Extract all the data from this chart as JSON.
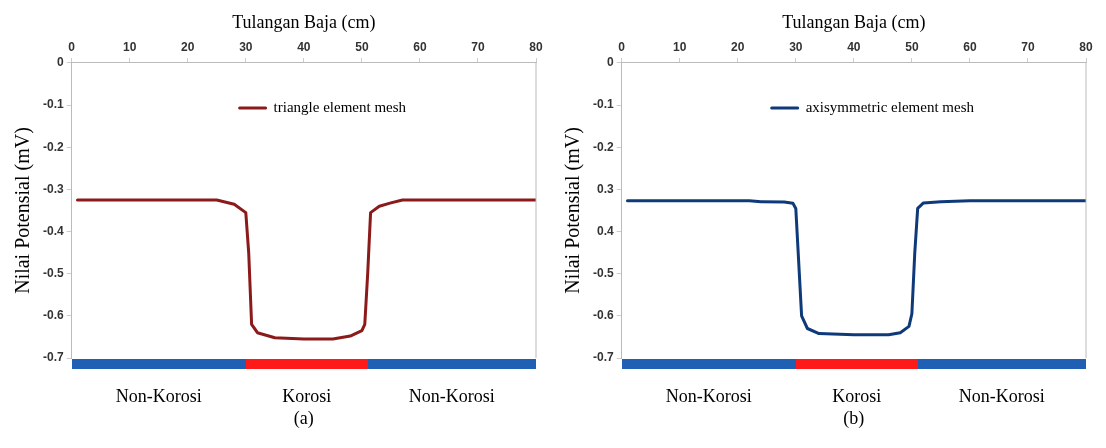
{
  "chart_data": [
    {
      "type": "line",
      "xlabel": "Tulangan Baja (cm)",
      "ylabel": "Nilai Potensial (mV)",
      "xlim": [
        0,
        80
      ],
      "xticks": [
        0,
        10,
        20,
        30,
        40,
        50,
        60,
        70,
        80
      ],
      "ylim": [
        -0.7,
        0
      ],
      "yticks": [
        0,
        -0.1,
        -0.2,
        -0.3,
        -0.4,
        -0.5,
        -0.6,
        -0.7
      ],
      "grid": false,
      "legend": "top",
      "marker": "none",
      "line_style": "solid",
      "series": [
        {
          "name": "triangle element mesh",
          "color": "#8b1a1a",
          "x": [
            1,
            10,
            20,
            25,
            28,
            30,
            30.5,
            31,
            32,
            35,
            40,
            45,
            48,
            50,
            50.5,
            51,
            51.5,
            53,
            55,
            57,
            65,
            80
          ],
          "values": [
            -0.325,
            -0.325,
            -0.325,
            -0.325,
            -0.335,
            -0.355,
            -0.45,
            -0.62,
            -0.64,
            -0.652,
            -0.655,
            -0.655,
            -0.648,
            -0.635,
            -0.62,
            -0.5,
            -0.355,
            -0.34,
            -0.332,
            -0.325,
            -0.325,
            -0.325
          ]
        }
      ],
      "annotations": [
        "Non-Korosi",
        "Korosi",
        "Non-Korosi",
        "(a)"
      ]
    },
    {
      "type": "line",
      "xlabel": "Tulangan Baja (cm)",
      "ylabel": "Nilai Potensial (mV)",
      "xlim": [
        0,
        80
      ],
      "xticks": [
        0,
        10,
        20,
        30,
        40,
        50,
        60,
        70,
        80
      ],
      "ylim": [
        -0.7,
        0
      ],
      "yticks": [
        0,
        -0.1,
        -0.2,
        {
          "value": -0.3,
          "label": "0.3"
        },
        {
          "value": -0.4,
          "label": "0.4"
        },
        -0.5,
        -0.6,
        -0.7
      ],
      "grid": false,
      "legend": "top",
      "marker": "none",
      "line_style": "solid",
      "series": [
        {
          "name": "axisymmetric element mesh",
          "color": "#0f3a7a",
          "x": [
            1,
            10,
            22,
            24,
            28,
            29.5,
            30,
            31,
            32,
            34,
            40,
            46,
            48,
            49.5,
            50,
            50.5,
            51,
            52,
            55,
            60,
            70,
            80
          ],
          "values": [
            -0.327,
            -0.327,
            -0.327,
            -0.329,
            -0.33,
            -0.333,
            -0.345,
            -0.6,
            -0.63,
            -0.642,
            -0.645,
            -0.645,
            -0.64,
            -0.625,
            -0.595,
            -0.45,
            -0.345,
            -0.332,
            -0.329,
            -0.327,
            -0.327,
            -0.327
          ]
        }
      ],
      "annotations": [
        "Non-Korosi",
        "Korosi",
        "Non-Korosi",
        "(b)"
      ]
    }
  ]
}
